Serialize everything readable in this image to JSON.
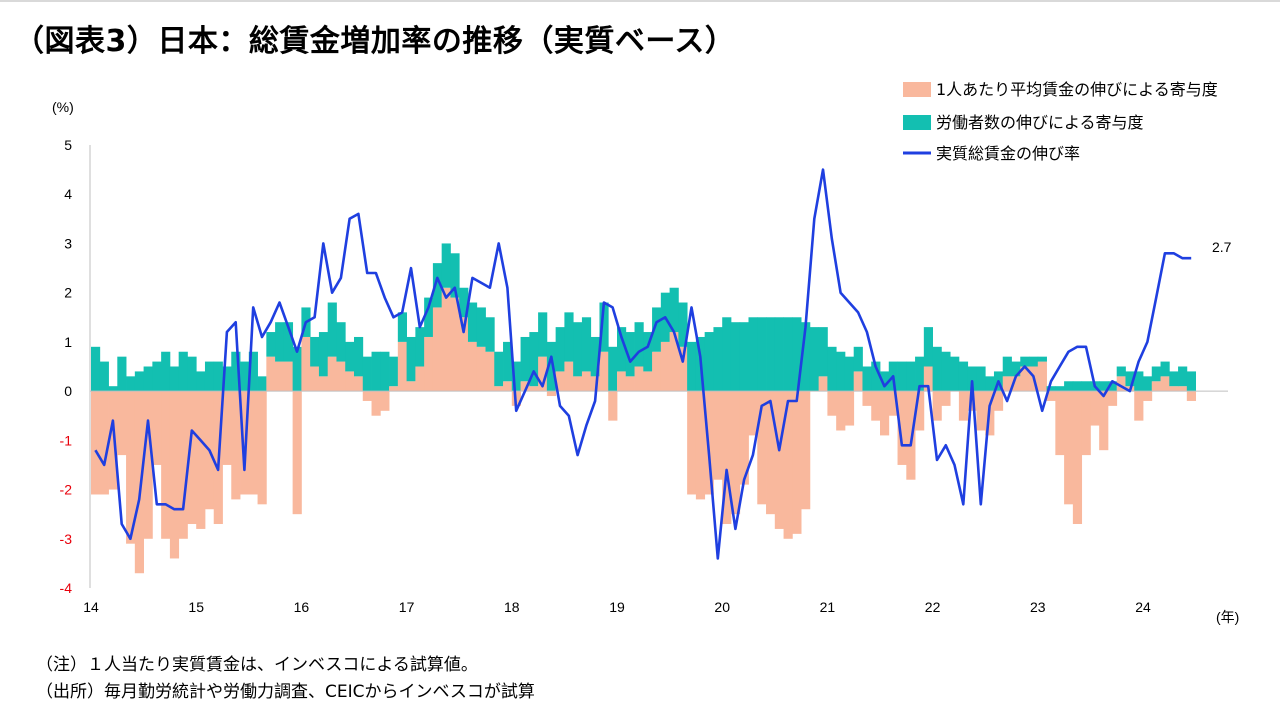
{
  "page": {
    "title": "（図表3）日本：総賃金増加率の推移（実質ベース）",
    "notes": [
      "（注）１人当たり実質賃金は、インベスコによる試算値。",
      "（出所）毎月勤労統計や労働力調査、CEICからインベスコが試算"
    ]
  },
  "chart_data": {
    "type": "bar",
    "title": "日本：総賃金増加率の推移（実質ベース）",
    "ylabel": "(%)",
    "xlabel": "(年)",
    "ylim": [
      -4,
      5
    ],
    "yticks": [
      "-4",
      "-3",
      "-2",
      "-1",
      "0",
      "1",
      "2",
      "3",
      "4",
      "5"
    ],
    "xticks": [
      "14",
      "15",
      "16",
      "17",
      "18",
      "19",
      "20",
      "21",
      "22",
      "23",
      "24"
    ],
    "x_start_year": 2014,
    "months": 126,
    "stacked": true,
    "series": [
      {
        "name": "1人あたり平均賃金の伸びによる寄与度",
        "kind": "bar",
        "color": "#f9b89d",
        "values": [
          -2.1,
          -2.1,
          -2.0,
          -1.3,
          -3.1,
          -3.7,
          -3.0,
          -1.5,
          -3.0,
          -3.4,
          -3.0,
          -2.7,
          -2.8,
          -2.4,
          -2.7,
          -1.5,
          -2.2,
          -2.1,
          -2.1,
          -2.3,
          0.7,
          0.6,
          0.6,
          -2.5,
          1.1,
          0.5,
          0.3,
          0.7,
          0.6,
          0.4,
          0.3,
          -0.2,
          -0.5,
          -0.4,
          0.1,
          1.0,
          0.2,
          0.5,
          1.1,
          1.7,
          2.1,
          1.9,
          1.5,
          1.0,
          0.9,
          0.8,
          0.1,
          0.2,
          -0.3,
          0.2,
          0.1,
          0.7,
          -0.1,
          0.4,
          0.6,
          0.3,
          0.4,
          0.3,
          0.8,
          -0.6,
          0.4,
          0.3,
          0.5,
          0.4,
          0.8,
          1.0,
          1.2,
          0.9,
          -2.1,
          -2.2,
          -2.1,
          -1.8,
          -2.7,
          -2.5,
          -1.9,
          -0.9,
          -2.3,
          -2.5,
          -2.8,
          -3.0,
          -2.9,
          -2.4,
          0.0,
          0.3,
          -0.5,
          -0.8,
          -0.7,
          0.4,
          -0.3,
          -0.6,
          -0.9,
          -0.5,
          -1.5,
          -1.8,
          -0.8,
          0.5,
          -0.6,
          -0.3,
          0.0,
          -0.6,
          -0.4,
          -0.8,
          -0.9,
          -0.4,
          0.3,
          0.3,
          0.5,
          0.5,
          0.6,
          -0.2,
          -1.3,
          -2.3,
          -2.7,
          -1.3,
          -0.7,
          -1.2,
          -0.3,
          0.3,
          0.1,
          -0.6,
          -0.2,
          0.2,
          0.3,
          0.1,
          0.1,
          -0.2
        ]
      },
      {
        "name": "労働者数の伸びによる寄与度",
        "kind": "bar",
        "color": "#13bfb1",
        "values": [
          0.9,
          0.6,
          0.1,
          0.7,
          0.3,
          0.4,
          0.5,
          0.6,
          0.8,
          0.5,
          0.8,
          0.7,
          0.4,
          0.6,
          0.6,
          0.5,
          0.8,
          0.6,
          0.8,
          0.3,
          0.5,
          0.8,
          0.8,
          0.9,
          0.6,
          0.6,
          0.9,
          1.1,
          0.8,
          0.6,
          0.8,
          0.7,
          0.8,
          0.8,
          0.6,
          0.6,
          0.9,
          0.8,
          0.8,
          0.9,
          0.9,
          0.9,
          0.6,
          0.8,
          0.8,
          0.7,
          0.7,
          0.8,
          0.6,
          0.9,
          1.1,
          0.9,
          1.0,
          0.9,
          1.0,
          1.1,
          1.1,
          0.8,
          1.0,
          0.9,
          0.9,
          0.9,
          0.9,
          0.8,
          0.9,
          1.0,
          0.9,
          0.9,
          1.0,
          1.1,
          1.2,
          1.3,
          1.5,
          1.4,
          1.4,
          1.5,
          1.5,
          1.5,
          1.5,
          1.5,
          1.5,
          1.4,
          1.3,
          1.0,
          0.9,
          0.8,
          0.7,
          0.5,
          0.5,
          0.6,
          0.4,
          0.6,
          0.6,
          0.6,
          0.7,
          0.8,
          0.9,
          0.8,
          0.7,
          0.6,
          0.5,
          0.5,
          0.3,
          0.4,
          0.4,
          0.3,
          0.2,
          0.2,
          0.1,
          0.1,
          0.1,
          0.2,
          0.2,
          0.2,
          0.2,
          0.2,
          0.2,
          0.2,
          0.3,
          0.4,
          0.3,
          0.3,
          0.3,
          0.3,
          0.4,
          0.4
        ]
      },
      {
        "name": "実質総賃金の伸び率",
        "kind": "line",
        "color": "#1f3fe0",
        "values": [
          -1.2,
          -1.5,
          -0.6,
          -2.7,
          -3.0,
          -2.2,
          -0.6,
          -2.3,
          -2.3,
          -2.4,
          -2.4,
          -0.8,
          -1.0,
          -1.2,
          -1.6,
          1.2,
          1.4,
          -1.6,
          1.7,
          1.1,
          1.4,
          1.8,
          1.3,
          0.8,
          1.4,
          1.5,
          3.0,
          2.0,
          2.3,
          3.5,
          3.6,
          2.4,
          2.4,
          1.9,
          1.5,
          1.6,
          2.5,
          1.3,
          1.7,
          2.3,
          1.9,
          2.1,
          1.2,
          2.3,
          2.2,
          2.1,
          3.0,
          2.1,
          -0.4,
          0.0,
          0.4,
          0.1,
          0.7,
          -0.3,
          -0.5,
          -1.3,
          -0.7,
          -0.2,
          1.8,
          1.7,
          1.1,
          0.6,
          0.8,
          0.9,
          1.4,
          1.5,
          1.2,
          0.6,
          1.7,
          0.7,
          -1.3,
          -3.4,
          -1.6,
          -2.8,
          -1.8,
          -1.3,
          -0.3,
          -0.2,
          -1.2,
          -0.2,
          -0.2,
          1.3,
          3.5,
          4.5,
          3.1,
          2.0,
          1.8,
          1.6,
          1.2,
          0.5,
          0.1,
          0.3,
          -1.1,
          -1.1,
          0.1,
          0.1,
          -1.4,
          -1.1,
          -1.5,
          -2.3,
          0.2,
          -2.3,
          -0.3,
          0.2,
          -0.2,
          0.3,
          0.5,
          0.3,
          -0.4,
          0.2,
          0.5,
          0.8,
          0.9,
          0.9,
          0.1,
          -0.1,
          0.2,
          0.1,
          0.0,
          0.6,
          1.0,
          1.9,
          2.8,
          2.8,
          2.7,
          2.7
        ]
      }
    ],
    "end_label": "2.7"
  }
}
